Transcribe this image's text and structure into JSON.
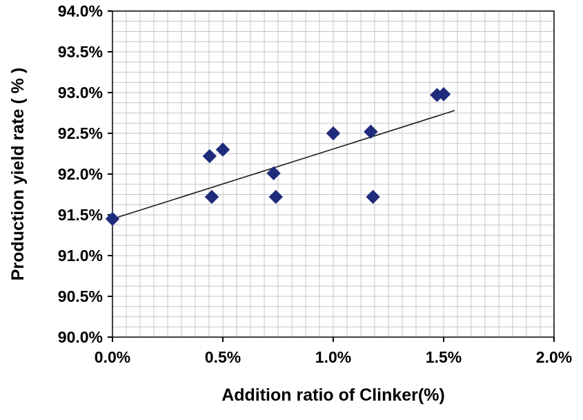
{
  "chart_data": {
    "type": "scatter",
    "title": "",
    "xlabel": "Addition ratio of Clinker(%)",
    "ylabel": "Production yield rate ( % )",
    "xlim": [
      0,
      2
    ],
    "ylim": [
      90,
      94
    ],
    "x_ticks": {
      "values": [
        0,
        0.5,
        1.0,
        1.5,
        2.0
      ],
      "labels": [
        "0.0%",
        "0.5%",
        "1.0%",
        "1.5%",
        "2.0%"
      ]
    },
    "y_ticks": {
      "values": [
        90,
        90.5,
        91,
        91.5,
        92,
        92.5,
        93,
        93.5,
        94
      ],
      "labels": [
        "90.0%",
        "90.5%",
        "91.0%",
        "91.5%",
        "92.0%",
        "92.5%",
        "93.0%",
        "93.5%",
        "94.0%"
      ]
    },
    "grid": {
      "visible": true,
      "minor_x_step": 0.0625,
      "minor_y_step": 0.125,
      "color": "#c6c6c6"
    },
    "legend": "none",
    "series": [
      {
        "name": "Production yield rate",
        "marker": "diamond",
        "color": "#1F2C7C",
        "points": [
          {
            "x": 0.0,
            "y": 91.45
          },
          {
            "x": 0.44,
            "y": 92.22
          },
          {
            "x": 0.45,
            "y": 91.72
          },
          {
            "x": 0.5,
            "y": 92.3
          },
          {
            "x": 0.73,
            "y": 92.01
          },
          {
            "x": 0.74,
            "y": 91.72
          },
          {
            "x": 1.0,
            "y": 92.5
          },
          {
            "x": 1.17,
            "y": 92.52
          },
          {
            "x": 1.18,
            "y": 91.72
          },
          {
            "x": 1.47,
            "y": 92.97
          },
          {
            "x": 1.5,
            "y": 92.98
          }
        ]
      }
    ],
    "trendline": {
      "x1": 0.0,
      "y1": 91.45,
      "x2": 1.55,
      "y2": 92.78,
      "color": "#1a1a1a"
    }
  }
}
